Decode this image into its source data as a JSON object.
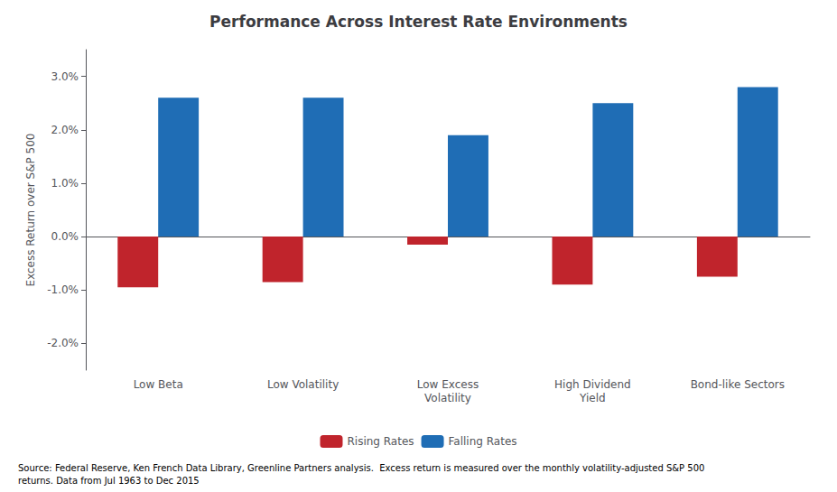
{
  "chart_data": {
    "type": "bar",
    "title": "Performance Across Interest Rate Environments",
    "categories": [
      "Low Beta",
      "Low Volatility",
      "Low Excess\nVolatility",
      "High Dividend\nYield",
      "Bond-like Sectors"
    ],
    "series": [
      {
        "name": "Rising Rates",
        "color": "#C0242C",
        "values": [
          -0.0095,
          -0.0085,
          -0.0015,
          -0.009,
          -0.0075
        ]
      },
      {
        "name": "Falling Rates",
        "color": "#1F6DB5",
        "values": [
          0.026,
          0.026,
          0.019,
          0.025,
          0.028
        ]
      }
    ],
    "ylabel": "Excess Return over S&P 500",
    "ylim": [
      -0.025,
      0.035
    ],
    "yticks": [
      {
        "value": -0.02,
        "label": "-2.0%"
      },
      {
        "value": -0.01,
        "label": "-1.0%"
      },
      {
        "value": 0.0,
        "label": "0.0%"
      },
      {
        "value": 0.01,
        "label": "1.0%"
      },
      {
        "value": 0.02,
        "label": "2.0%"
      },
      {
        "value": 0.03,
        "label": "3.0%"
      }
    ],
    "grid": false,
    "legend": "bottom",
    "annotations": [
      "Source: Federal Reserve, Ken French Data Library, Greenline Partners analysis.  Excess return is measured over the monthly volatility-adjusted S&P 500\nreturns. Data from Jul 1963 to Dec 2015"
    ]
  }
}
